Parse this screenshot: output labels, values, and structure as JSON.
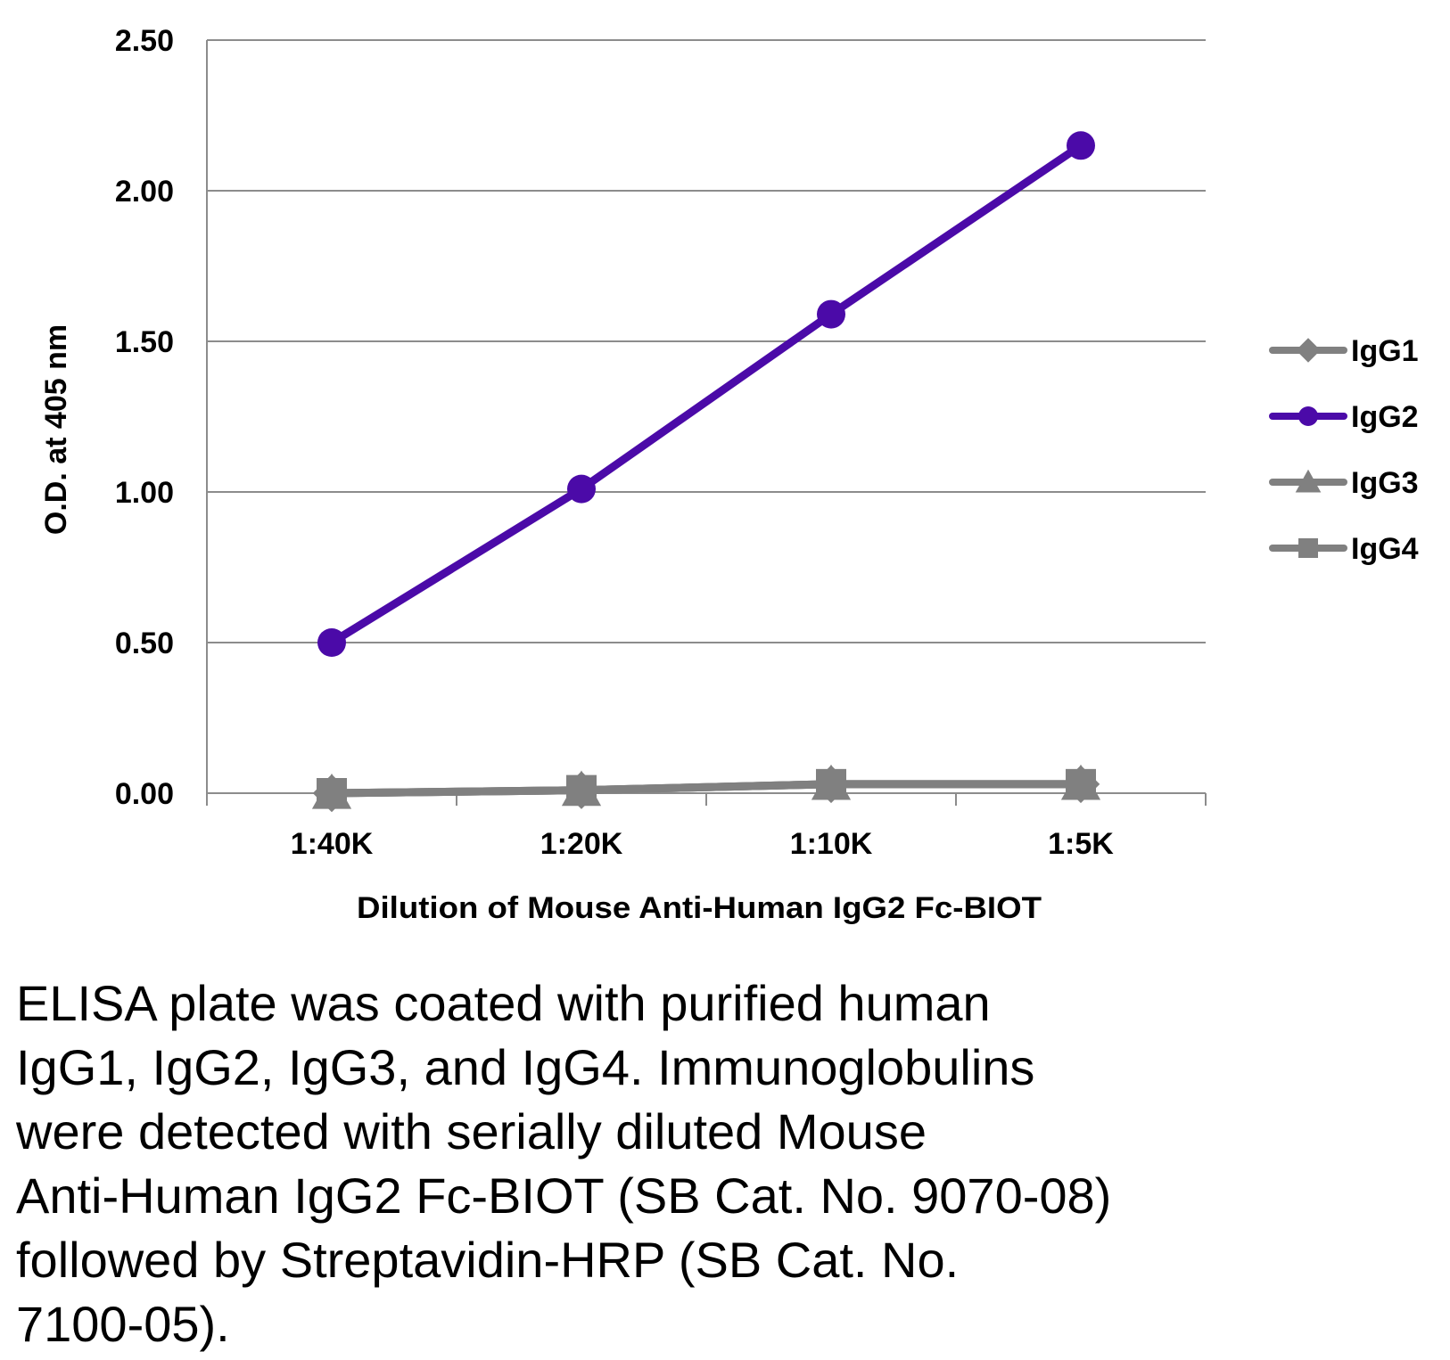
{
  "chart_data": {
    "type": "line",
    "xlabel": "Dilution of Mouse Anti-Human IgG2 Fc-BIOT",
    "ylabel": "O.D. at 405 nm",
    "categories": [
      "1:40K",
      "1:20K",
      "1:10K",
      "1:5K"
    ],
    "ylim": [
      0,
      2.5
    ],
    "yticks": [
      "0.00",
      "0.50",
      "1.00",
      "1.50",
      "2.00",
      "2.50"
    ],
    "ytick_values": [
      0,
      0.5,
      1.0,
      1.5,
      2.0,
      2.5
    ],
    "grid": "horizontal",
    "legend_position": "right",
    "series": [
      {
        "name": "IgG1",
        "values": [
          0.0,
          0.01,
          0.03,
          0.03
        ],
        "color": "#808080",
        "marker": "diamond"
      },
      {
        "name": "IgG2",
        "values": [
          0.5,
          1.01,
          1.59,
          2.15
        ],
        "color": "#4B0AA8",
        "marker": "circle"
      },
      {
        "name": "IgG3",
        "values": [
          0.0,
          0.01,
          0.03,
          0.03
        ],
        "color": "#808080",
        "marker": "triangle"
      },
      {
        "name": "IgG4",
        "values": [
          0.0,
          0.01,
          0.03,
          0.03
        ],
        "color": "#808080",
        "marker": "square"
      }
    ]
  },
  "caption": "ELISA plate was coated with purified human\nIgG1, IgG2, IgG3, and IgG4.  Immunoglobulins\nwere detected with serially diluted Mouse\nAnti-Human IgG2 Fc-BIOT (SB Cat. No. 9070-08)\nfollowed by Streptavidin-HRP (SB Cat. No.\n7100-05)."
}
